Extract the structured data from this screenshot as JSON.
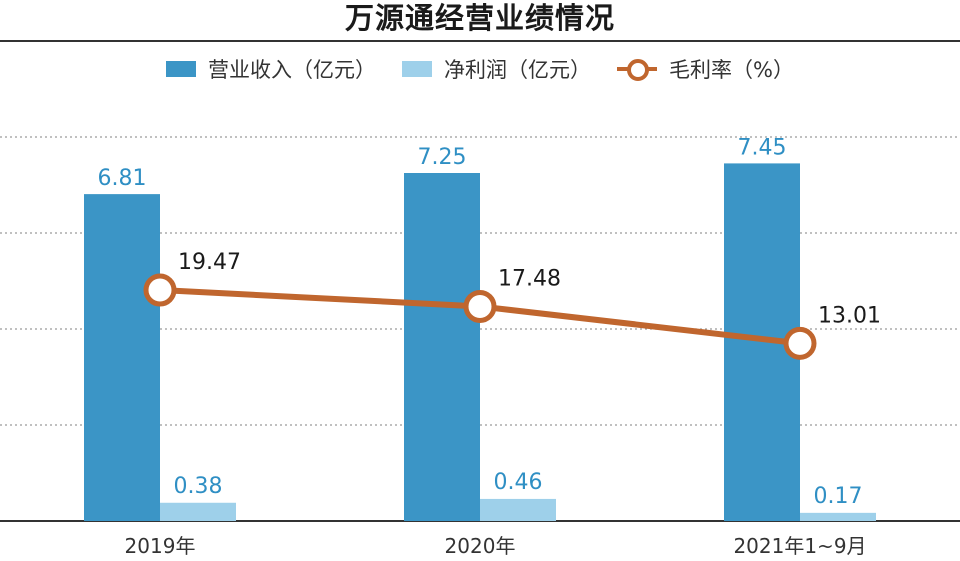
{
  "chart_data": {
    "type": "bar",
    "title": "万源通经营业绩情况",
    "categories": [
      "2019年",
      "2020年",
      "2021年1~9月"
    ],
    "series": [
      {
        "name": "营业收入（亿元）",
        "kind": "bar",
        "values": [
          6.81,
          7.25,
          7.45
        ],
        "label_color": "#2f8fc4"
      },
      {
        "name": "净利润（亿元）",
        "kind": "bar",
        "values": [
          0.38,
          0.46,
          0.17
        ],
        "label_color": "#2f8fc4"
      },
      {
        "name": "毛利率（%）",
        "kind": "line",
        "values": [
          19.47,
          17.48,
          13.01
        ],
        "label_color": "#1a1a1a"
      }
    ],
    "bar_axis_ylim": [
      0,
      8
    ],
    "line_axis_ylim": [
      -8.5,
      38
    ],
    "grid": true,
    "legend_position": "top",
    "colors": {
      "revenue_bar": "#3b95c6",
      "profit_bar": "#9ed0ea",
      "margin_line": "#c0662e",
      "value_label": "#2f8fc4",
      "grid": "#9a9a9a",
      "axis": "#333333"
    }
  }
}
